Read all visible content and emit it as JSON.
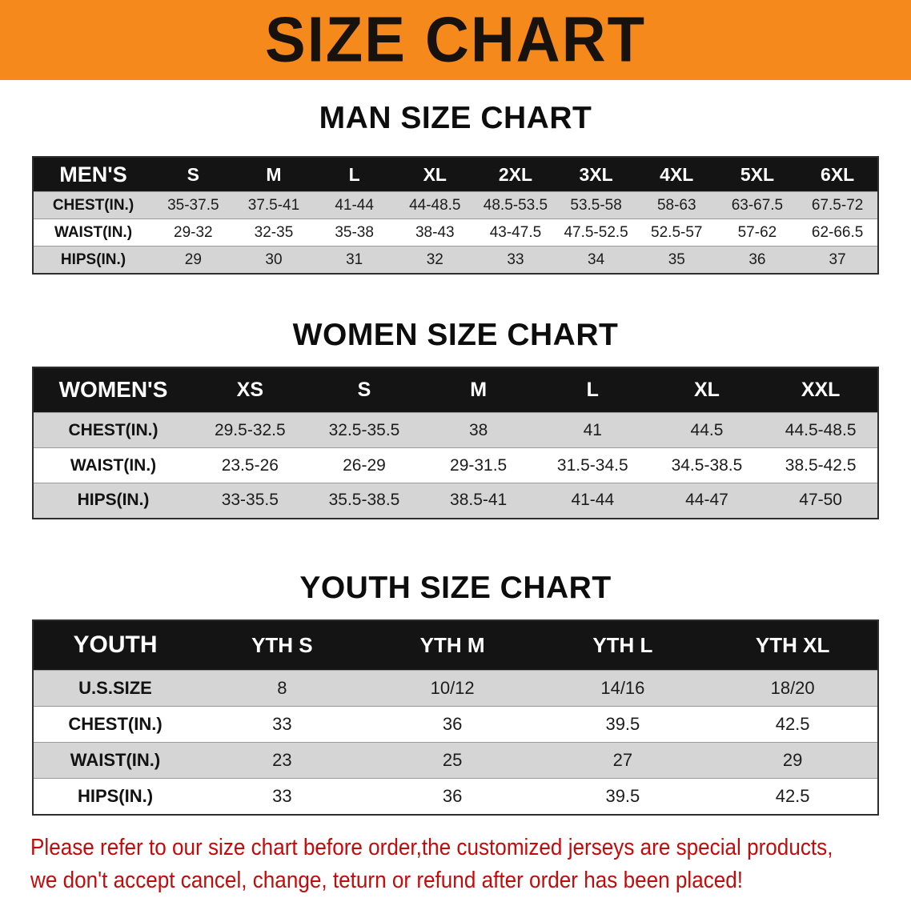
{
  "banner": {
    "title": "SIZE CHART"
  },
  "colors": {
    "banner_bg": "#f6891c",
    "header_bg": "#141414",
    "row_shaded": "#d5d5d5",
    "row_plain": "#ffffff",
    "disclaimer_red": "#c40a0a"
  },
  "sections": [
    {
      "id": "men",
      "heading": "MAN SIZE CHART",
      "table": {
        "header": [
          "MEN'S",
          "S",
          "M",
          "L",
          "XL",
          "2XL",
          "3XL",
          "4XL",
          "5XL",
          "6XL"
        ],
        "rows": [
          {
            "label": "CHEST(IN.)",
            "values": [
              "35-37.5",
              "37.5-41",
              "41-44",
              "44-48.5",
              "48.5-53.5",
              "53.5-58",
              "58-63",
              "63-67.5",
              "67.5-72"
            ]
          },
          {
            "label": "WAIST(IN.)",
            "values": [
              "29-32",
              "32-35",
              "35-38",
              "38-43",
              "43-47.5",
              "47.5-52.5",
              "52.5-57",
              "57-62",
              "62-66.5"
            ]
          },
          {
            "label": "HIPS(IN.)",
            "values": [
              "29",
              "30",
              "31",
              "32",
              "33",
              "34",
              "35",
              "36",
              "37"
            ]
          }
        ]
      }
    },
    {
      "id": "women",
      "heading": "WOMEN SIZE CHART",
      "table": {
        "header": [
          "WOMEN'S",
          "XS",
          "S",
          "M",
          "L",
          "XL",
          "XXL"
        ],
        "rows": [
          {
            "label": "CHEST(IN.)",
            "values": [
              "29.5-32.5",
              "32.5-35.5",
              "38",
              "41",
              "44.5",
              "44.5-48.5"
            ]
          },
          {
            "label": "WAIST(IN.)",
            "values": [
              "23.5-26",
              "26-29",
              "29-31.5",
              "31.5-34.5",
              "34.5-38.5",
              "38.5-42.5"
            ]
          },
          {
            "label": "HIPS(IN.)",
            "values": [
              "33-35.5",
              "35.5-38.5",
              "38.5-41",
              "41-44",
              "44-47",
              "47-50"
            ]
          }
        ]
      }
    },
    {
      "id": "youth",
      "heading": "YOUTH SIZE CHART",
      "table": {
        "header": [
          "YOUTH",
          "YTH S",
          "YTH M",
          "YTH L",
          "YTH XL"
        ],
        "rows": [
          {
            "label": "U.S.SIZE",
            "values": [
              "8",
              "10/12",
              "14/16",
              "18/20"
            ]
          },
          {
            "label": "CHEST(IN.)",
            "values": [
              "33",
              "36",
              "39.5",
              "42.5"
            ]
          },
          {
            "label": "WAIST(IN.)",
            "values": [
              "23",
              "25",
              "27",
              "29"
            ]
          },
          {
            "label": "HIPS(IN.)",
            "values": [
              "33",
              "36",
              "39.5",
              "42.5"
            ]
          }
        ]
      }
    }
  ],
  "disclaimer": {
    "lines": [
      "Please refer to our size chart before order,the customized jerseys are special products,",
      "we don't accept cancel, change, teturn or refund after order has been placed!"
    ]
  }
}
